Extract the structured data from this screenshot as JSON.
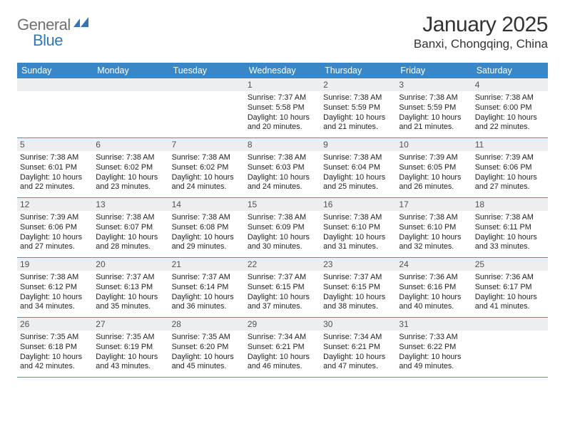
{
  "brand": {
    "general": "General",
    "blue": "Blue"
  },
  "title": "January 2025",
  "location": "Banxi, Chongqing, China",
  "colors": {
    "header_bg": "#3a87c8",
    "header_text": "#ffffff",
    "daynum_bg": "#eceeef",
    "daynum_text": "#525252",
    "body_text": "#222222",
    "rule": "#5b8fbd",
    "logo_gray": "#6f6f6f",
    "logo_blue": "#2f77b6"
  },
  "weekdays": [
    "Sunday",
    "Monday",
    "Tuesday",
    "Wednesday",
    "Thursday",
    "Friday",
    "Saturday"
  ],
  "weeks": [
    [
      {
        "n": "",
        "lines": []
      },
      {
        "n": "",
        "lines": []
      },
      {
        "n": "",
        "lines": []
      },
      {
        "n": "1",
        "lines": [
          "Sunrise: 7:37 AM",
          "Sunset: 5:58 PM",
          "Daylight: 10 hours",
          "and 20 minutes."
        ]
      },
      {
        "n": "2",
        "lines": [
          "Sunrise: 7:38 AM",
          "Sunset: 5:59 PM",
          "Daylight: 10 hours",
          "and 21 minutes."
        ]
      },
      {
        "n": "3",
        "lines": [
          "Sunrise: 7:38 AM",
          "Sunset: 5:59 PM",
          "Daylight: 10 hours",
          "and 21 minutes."
        ]
      },
      {
        "n": "4",
        "lines": [
          "Sunrise: 7:38 AM",
          "Sunset: 6:00 PM",
          "Daylight: 10 hours",
          "and 22 minutes."
        ]
      }
    ],
    [
      {
        "n": "5",
        "lines": [
          "Sunrise: 7:38 AM",
          "Sunset: 6:01 PM",
          "Daylight: 10 hours",
          "and 22 minutes."
        ]
      },
      {
        "n": "6",
        "lines": [
          "Sunrise: 7:38 AM",
          "Sunset: 6:02 PM",
          "Daylight: 10 hours",
          "and 23 minutes."
        ]
      },
      {
        "n": "7",
        "lines": [
          "Sunrise: 7:38 AM",
          "Sunset: 6:02 PM",
          "Daylight: 10 hours",
          "and 24 minutes."
        ]
      },
      {
        "n": "8",
        "lines": [
          "Sunrise: 7:38 AM",
          "Sunset: 6:03 PM",
          "Daylight: 10 hours",
          "and 24 minutes."
        ]
      },
      {
        "n": "9",
        "lines": [
          "Sunrise: 7:38 AM",
          "Sunset: 6:04 PM",
          "Daylight: 10 hours",
          "and 25 minutes."
        ]
      },
      {
        "n": "10",
        "lines": [
          "Sunrise: 7:39 AM",
          "Sunset: 6:05 PM",
          "Daylight: 10 hours",
          "and 26 minutes."
        ]
      },
      {
        "n": "11",
        "lines": [
          "Sunrise: 7:39 AM",
          "Sunset: 6:06 PM",
          "Daylight: 10 hours",
          "and 27 minutes."
        ]
      }
    ],
    [
      {
        "n": "12",
        "lines": [
          "Sunrise: 7:39 AM",
          "Sunset: 6:06 PM",
          "Daylight: 10 hours",
          "and 27 minutes."
        ]
      },
      {
        "n": "13",
        "lines": [
          "Sunrise: 7:38 AM",
          "Sunset: 6:07 PM",
          "Daylight: 10 hours",
          "and 28 minutes."
        ]
      },
      {
        "n": "14",
        "lines": [
          "Sunrise: 7:38 AM",
          "Sunset: 6:08 PM",
          "Daylight: 10 hours",
          "and 29 minutes."
        ]
      },
      {
        "n": "15",
        "lines": [
          "Sunrise: 7:38 AM",
          "Sunset: 6:09 PM",
          "Daylight: 10 hours",
          "and 30 minutes."
        ]
      },
      {
        "n": "16",
        "lines": [
          "Sunrise: 7:38 AM",
          "Sunset: 6:10 PM",
          "Daylight: 10 hours",
          "and 31 minutes."
        ]
      },
      {
        "n": "17",
        "lines": [
          "Sunrise: 7:38 AM",
          "Sunset: 6:10 PM",
          "Daylight: 10 hours",
          "and 32 minutes."
        ]
      },
      {
        "n": "18",
        "lines": [
          "Sunrise: 7:38 AM",
          "Sunset: 6:11 PM",
          "Daylight: 10 hours",
          "and 33 minutes."
        ]
      }
    ],
    [
      {
        "n": "19",
        "lines": [
          "Sunrise: 7:38 AM",
          "Sunset: 6:12 PM",
          "Daylight: 10 hours",
          "and 34 minutes."
        ]
      },
      {
        "n": "20",
        "lines": [
          "Sunrise: 7:37 AM",
          "Sunset: 6:13 PM",
          "Daylight: 10 hours",
          "and 35 minutes."
        ]
      },
      {
        "n": "21",
        "lines": [
          "Sunrise: 7:37 AM",
          "Sunset: 6:14 PM",
          "Daylight: 10 hours",
          "and 36 minutes."
        ]
      },
      {
        "n": "22",
        "lines": [
          "Sunrise: 7:37 AM",
          "Sunset: 6:15 PM",
          "Daylight: 10 hours",
          "and 37 minutes."
        ]
      },
      {
        "n": "23",
        "lines": [
          "Sunrise: 7:37 AM",
          "Sunset: 6:15 PM",
          "Daylight: 10 hours",
          "and 38 minutes."
        ]
      },
      {
        "n": "24",
        "lines": [
          "Sunrise: 7:36 AM",
          "Sunset: 6:16 PM",
          "Daylight: 10 hours",
          "and 40 minutes."
        ]
      },
      {
        "n": "25",
        "lines": [
          "Sunrise: 7:36 AM",
          "Sunset: 6:17 PM",
          "Daylight: 10 hours",
          "and 41 minutes."
        ]
      }
    ],
    [
      {
        "n": "26",
        "lines": [
          "Sunrise: 7:35 AM",
          "Sunset: 6:18 PM",
          "Daylight: 10 hours",
          "and 42 minutes."
        ]
      },
      {
        "n": "27",
        "lines": [
          "Sunrise: 7:35 AM",
          "Sunset: 6:19 PM",
          "Daylight: 10 hours",
          "and 43 minutes."
        ]
      },
      {
        "n": "28",
        "lines": [
          "Sunrise: 7:35 AM",
          "Sunset: 6:20 PM",
          "Daylight: 10 hours",
          "and 45 minutes."
        ]
      },
      {
        "n": "29",
        "lines": [
          "Sunrise: 7:34 AM",
          "Sunset: 6:21 PM",
          "Daylight: 10 hours",
          "and 46 minutes."
        ]
      },
      {
        "n": "30",
        "lines": [
          "Sunrise: 7:34 AM",
          "Sunset: 6:21 PM",
          "Daylight: 10 hours",
          "and 47 minutes."
        ]
      },
      {
        "n": "31",
        "lines": [
          "Sunrise: 7:33 AM",
          "Sunset: 6:22 PM",
          "Daylight: 10 hours",
          "and 49 minutes."
        ]
      },
      {
        "n": "",
        "lines": []
      }
    ]
  ]
}
